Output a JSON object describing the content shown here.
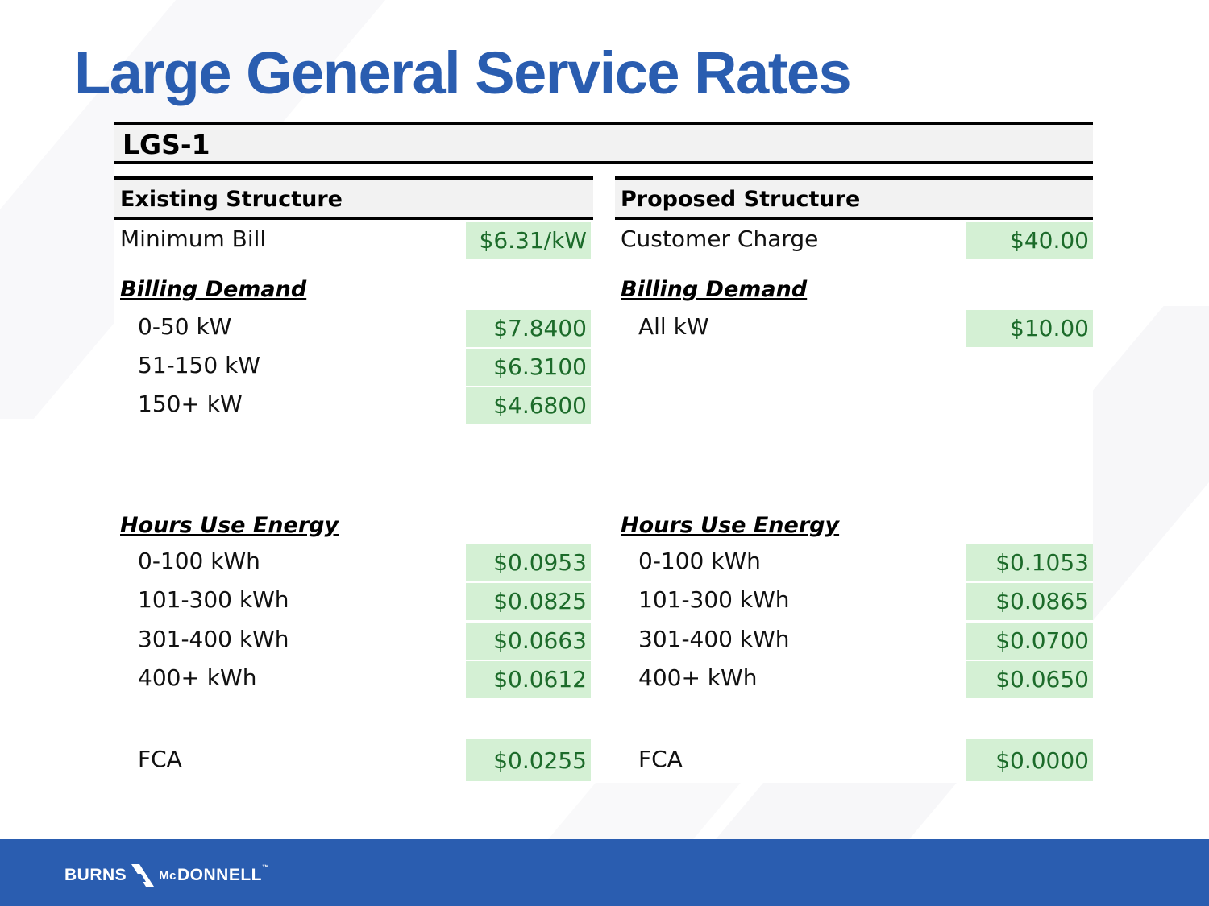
{
  "title": "Large General Service Rates",
  "table": {
    "rate_code": "LGS-1",
    "existing": {
      "heading": "Existing Structure",
      "minimum": {
        "label": "Minimum Bill",
        "value": "$6.31/kW"
      },
      "demand_heading": "Billing Demand",
      "demand": [
        {
          "label": "0-50 kW",
          "value": "$7.8400"
        },
        {
          "label": "51-150 kW",
          "value": "$6.3100"
        },
        {
          "label": "150+ kW",
          "value": "$4.6800"
        }
      ],
      "energy_heading": "Hours Use Energy",
      "energy": [
        {
          "label": "0-100 kWh",
          "value": "$0.0953"
        },
        {
          "label": "101-300 kWh",
          "value": "$0.0825"
        },
        {
          "label": "301-400 kWh",
          "value": "$0.0663"
        },
        {
          "label": "400+ kWh",
          "value": "$0.0612"
        }
      ],
      "fca": {
        "label": "FCA",
        "value": "$0.0255"
      }
    },
    "proposed": {
      "heading": "Proposed Structure",
      "minimum": {
        "label": "Customer Charge",
        "value": "$40.00"
      },
      "demand_heading": "Billing Demand",
      "demand": [
        {
          "label": "All kW",
          "value": "$10.00"
        }
      ],
      "energy_heading": "Hours Use Energy",
      "energy": [
        {
          "label": "0-100 kWh",
          "value": "$0.1053"
        },
        {
          "label": "101-300 kWh",
          "value": "$0.0865"
        },
        {
          "label": "301-400 kWh",
          "value": "$0.0700"
        },
        {
          "label": "400+ kWh",
          "value": "$0.0650"
        }
      ],
      "fca": {
        "label": "FCA",
        "value": "$0.0000"
      }
    }
  },
  "footer": {
    "logo_left": "BURNS",
    "logo_mc": "Mc",
    "logo_right": "DONNELL",
    "logo_tm": "™"
  },
  "colors": {
    "title": "#2a5db0",
    "footer": "#2a5db0",
    "value_fill": "#d4f0d4",
    "value_text": "#1c6b2a"
  }
}
